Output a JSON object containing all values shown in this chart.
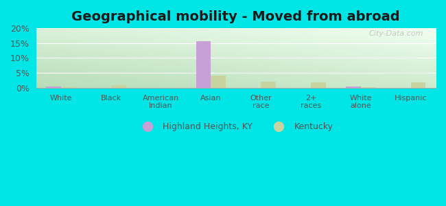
{
  "title": "Geographical mobility - Moved from abroad",
  "categories": [
    "White",
    "Black",
    "American\nIndian",
    "Asian",
    "Other\nrace",
    "2+\nraces",
    "White\nalone",
    "Hispanic"
  ],
  "highland_heights": [
    0.3,
    0.0,
    0.0,
    15.7,
    0.0,
    0.0,
    0.3,
    0.0
  ],
  "kentucky": [
    0.2,
    0.9,
    0.0,
    4.0,
    2.1,
    1.7,
    0.2,
    1.8
  ],
  "color_hh": "#c8a0d8",
  "color_ky": "#c8d4a0",
  "ylim": [
    0,
    20
  ],
  "yticks": [
    0,
    5,
    10,
    15,
    20
  ],
  "ytick_labels": [
    "0%",
    "5%",
    "10%",
    "15%",
    "20%"
  ],
  "legend_hh": "Highland Heights, KY",
  "legend_ky": "Kentucky",
  "bg_color": "#00e5e5",
  "plot_bg_topleft": "#b8ddb8",
  "plot_bg_bottomright": "#f0fff0",
  "watermark": "City-Data.com",
  "title_fontsize": 14,
  "bar_width": 0.3,
  "tick_label_color": "#555555",
  "grid_color": "#ffffff"
}
